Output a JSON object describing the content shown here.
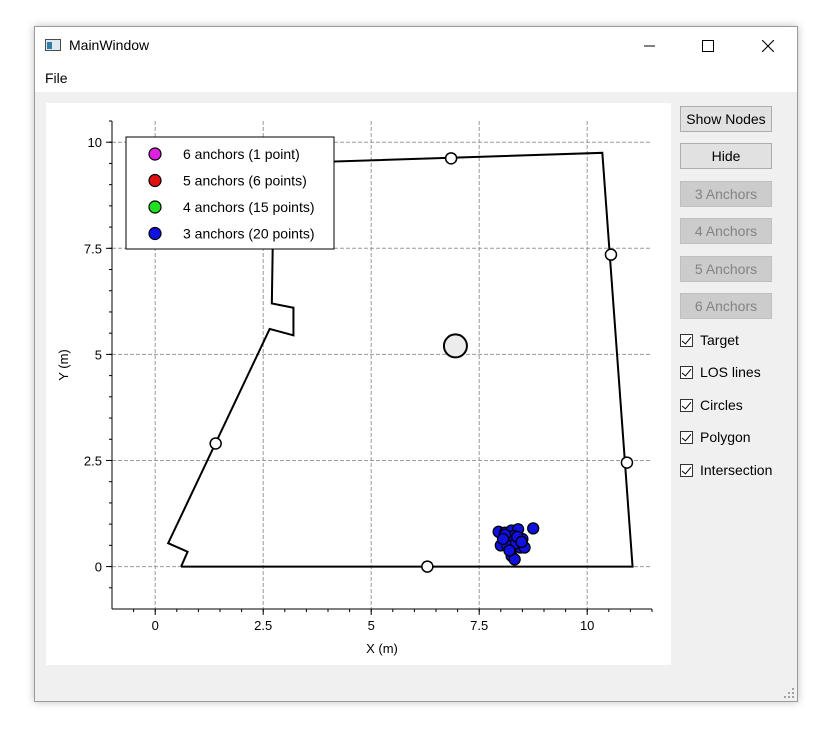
{
  "window": {
    "title": "MainWindow"
  },
  "menu": {
    "file_label": "File"
  },
  "side_panel": {
    "buttons": [
      {
        "label": "Show Nodes",
        "enabled": true
      },
      {
        "label": "Hide",
        "enabled": true
      },
      {
        "label": "3 Anchors",
        "enabled": false
      },
      {
        "label": "4 Anchors",
        "enabled": false
      },
      {
        "label": "5 Anchors",
        "enabled": false
      },
      {
        "label": "6 Anchors",
        "enabled": false
      }
    ],
    "checkboxes": [
      {
        "label": "Target",
        "checked": true
      },
      {
        "label": "LOS lines",
        "checked": true
      },
      {
        "label": "Circles",
        "checked": true
      },
      {
        "label": "Polygon",
        "checked": true
      },
      {
        "label": "Intersection",
        "checked": true
      }
    ]
  },
  "chart_data": {
    "type": "scatter",
    "xlabel": "X (m)",
    "ylabel": "Y (m)",
    "xlim": [
      -1,
      11.5
    ],
    "ylim": [
      -1,
      10.5
    ],
    "x_ticks": [
      0,
      2.5,
      5,
      7.5,
      10
    ],
    "x_tick_labels": [
      "0",
      "2.5",
      "5",
      "7.5",
      "10"
    ],
    "y_ticks": [
      0,
      2.5,
      5,
      7.5,
      10
    ],
    "y_tick_labels": [
      "0",
      "2.5",
      "5",
      "7.5",
      "10"
    ],
    "grid": true,
    "legend_position": "top-left",
    "legend": [
      {
        "label": "6 anchors (1 point)",
        "color": "#e020e0"
      },
      {
        "label": "5 anchors (6 points)",
        "color": "#e01010"
      },
      {
        "label": "4 anchors (15 points)",
        "color": "#20e020"
      },
      {
        "label": "3 anchors (20 points)",
        "color": "#1010e0"
      }
    ],
    "polygon": [
      [
        0.6,
        0
      ],
      [
        11.05,
        0
      ],
      [
        10.35,
        9.75
      ],
      [
        2.75,
        9.5
      ],
      [
        2.7,
        6.2
      ],
      [
        3.2,
        6.1
      ],
      [
        3.2,
        5.45
      ],
      [
        2.65,
        5.6
      ],
      [
        0.3,
        0.55
      ],
      [
        0.75,
        0.35
      ],
      [
        0.6,
        0
      ]
    ],
    "anchors": [
      [
        6.85,
        9.62
      ],
      [
        10.55,
        7.35
      ],
      [
        10.92,
        2.45
      ],
      [
        6.3,
        0.0
      ],
      [
        1.4,
        2.9
      ]
    ],
    "target": [
      6.95,
      5.2
    ],
    "points_3_anchors": [
      [
        7.95,
        0.82
      ],
      [
        8.1,
        0.8
      ],
      [
        8.25,
        0.85
      ],
      [
        8.4,
        0.88
      ],
      [
        8.75,
        0.9
      ],
      [
        8.3,
        0.72
      ],
      [
        8.5,
        0.65
      ],
      [
        8.2,
        0.6
      ],
      [
        8.0,
        0.5
      ],
      [
        8.45,
        0.45
      ],
      [
        8.55,
        0.45
      ],
      [
        8.15,
        0.5
      ],
      [
        8.35,
        0.55
      ],
      [
        8.25,
        0.25
      ],
      [
        8.32,
        0.17
      ],
      [
        8.1,
        0.75
      ],
      [
        8.38,
        0.7
      ],
      [
        8.2,
        0.38
      ],
      [
        8.48,
        0.58
      ],
      [
        8.05,
        0.65
      ]
    ],
    "series_colors": {
      "three": "#1010e0"
    }
  }
}
